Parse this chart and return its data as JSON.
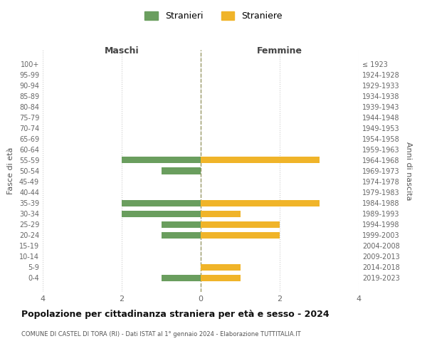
{
  "age_groups": [
    "100+",
    "95-99",
    "90-94",
    "85-89",
    "80-84",
    "75-79",
    "70-74",
    "65-69",
    "60-64",
    "55-59",
    "50-54",
    "45-49",
    "40-44",
    "35-39",
    "30-34",
    "25-29",
    "20-24",
    "15-19",
    "10-14",
    "5-9",
    "0-4"
  ],
  "birth_years": [
    "≤ 1923",
    "1924-1928",
    "1929-1933",
    "1934-1938",
    "1939-1943",
    "1944-1948",
    "1949-1953",
    "1954-1958",
    "1959-1963",
    "1964-1968",
    "1969-1973",
    "1974-1978",
    "1979-1983",
    "1984-1988",
    "1989-1993",
    "1994-1998",
    "1999-2003",
    "2004-2008",
    "2009-2013",
    "2014-2018",
    "2019-2023"
  ],
  "stranieri_maschi": [
    0,
    0,
    0,
    0,
    0,
    0,
    0,
    0,
    0,
    2,
    1,
    0,
    0,
    2,
    2,
    1,
    1,
    0,
    0,
    0,
    1
  ],
  "straniere_femmine": [
    0,
    0,
    0,
    0,
    0,
    0,
    0,
    0,
    0,
    3,
    0,
    0,
    0,
    3,
    1,
    2,
    2,
    0,
    0,
    1,
    1
  ],
  "color_maschi": "#6a9e5e",
  "color_femmine": "#f0b429",
  "title": "Popolazione per cittadinanza straniera per età e sesso - 2024",
  "subtitle": "COMUNE DI CASTEL DI TORA (RI) - Dati ISTAT al 1° gennaio 2024 - Elaborazione TUTTITALIA.IT",
  "xlabel_left": "Maschi",
  "xlabel_right": "Femmine",
  "ylabel_left": "Fasce di età",
  "ylabel_right": "Anni di nascita",
  "legend_stranieri": "Stranieri",
  "legend_straniere": "Straniere",
  "xlim": 4,
  "background_color": "#ffffff",
  "grid_color": "#cccccc"
}
